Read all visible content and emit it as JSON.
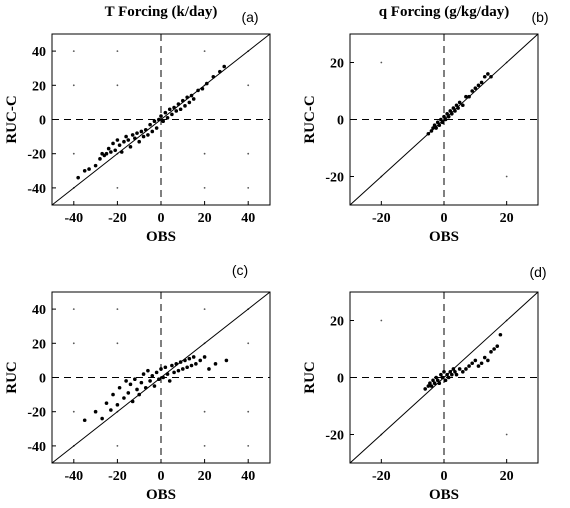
{
  "chart_data": [
    {
      "type": "scatter",
      "panel_label": "(a)",
      "title": "T Forcing (k/day)",
      "xlabel": "OBS",
      "ylabel": "RUC-C",
      "xlim": [
        -50,
        50
      ],
      "ylim": [
        -50,
        50
      ],
      "xticks": [
        -40,
        -20,
        0,
        20,
        40
      ],
      "yticks": [
        -40,
        -20,
        0,
        20,
        40
      ],
      "grid": "dotted",
      "reference_lines": [
        "y = x",
        "x = 0 (dashed)",
        "y = 0 (dashed)"
      ],
      "points": [
        [
          -38,
          -34
        ],
        [
          -35,
          -30
        ],
        [
          -33,
          -29
        ],
        [
          -30,
          -27
        ],
        [
          -28,
          -23
        ],
        [
          -27,
          -20
        ],
        [
          -26,
          -21
        ],
        [
          -25,
          -20
        ],
        [
          -24,
          -17
        ],
        [
          -23,
          -19
        ],
        [
          -22,
          -14
        ],
        [
          -21,
          -18
        ],
        [
          -20,
          -12
        ],
        [
          -19,
          -15
        ],
        [
          -18,
          -19
        ],
        [
          -17,
          -13
        ],
        [
          -16,
          -10
        ],
        [
          -15,
          -12
        ],
        [
          -14,
          -16
        ],
        [
          -13,
          -9
        ],
        [
          -12,
          -11
        ],
        [
          -11,
          -8
        ],
        [
          -10,
          -13
        ],
        [
          -9,
          -7
        ],
        [
          -8,
          -10
        ],
        [
          -7,
          -6
        ],
        [
          -6,
          -9
        ],
        [
          -5,
          -3
        ],
        [
          -4,
          -7
        ],
        [
          -3,
          -1
        ],
        [
          -2,
          -5
        ],
        [
          -1,
          0
        ],
        [
          0,
          2
        ],
        [
          1,
          -1
        ],
        [
          2,
          4
        ],
        [
          3,
          1
        ],
        [
          4,
          6
        ],
        [
          5,
          3
        ],
        [
          6,
          7
        ],
        [
          7,
          5
        ],
        [
          8,
          9
        ],
        [
          9,
          6
        ],
        [
          10,
          11
        ],
        [
          11,
          8
        ],
        [
          12,
          13
        ],
        [
          13,
          10
        ],
        [
          14,
          14
        ],
        [
          15,
          12
        ],
        [
          17,
          17
        ],
        [
          19,
          18
        ],
        [
          21,
          21
        ],
        [
          24,
          25
        ],
        [
          27,
          28
        ],
        [
          29,
          31
        ]
      ]
    },
    {
      "type": "scatter",
      "panel_label": "(b)",
      "title": "q Forcing (g/kg/day)",
      "xlabel": "OBS",
      "ylabel": "RUC-C",
      "xlim": [
        -30,
        30
      ],
      "ylim": [
        -30,
        30
      ],
      "xticks": [
        -20,
        0,
        20
      ],
      "yticks": [
        -20,
        0,
        20
      ],
      "grid": "dotted",
      "reference_lines": [
        "y = x",
        "x = 0 (dashed)",
        "y = 0 (dashed)"
      ],
      "points": [
        [
          -5,
          -5
        ],
        [
          -4,
          -4
        ],
        [
          -3.5,
          -3
        ],
        [
          -3,
          -2
        ],
        [
          -2.5,
          -3
        ],
        [
          -2,
          -1
        ],
        [
          -1.5,
          -2
        ],
        [
          -1,
          0
        ],
        [
          -0.5,
          -1
        ],
        [
          0,
          1
        ],
        [
          0.5,
          0
        ],
        [
          1,
          2
        ],
        [
          1.5,
          1
        ],
        [
          2,
          3
        ],
        [
          2.5,
          2
        ],
        [
          3,
          4
        ],
        [
          3.5,
          3
        ],
        [
          4,
          5
        ],
        [
          4.5,
          4
        ],
        [
          5,
          6
        ],
        [
          6,
          5
        ],
        [
          7,
          8
        ],
        [
          8,
          8
        ],
        [
          9,
          10
        ],
        [
          10,
          11
        ],
        [
          11,
          12
        ],
        [
          12,
          13
        ],
        [
          13,
          15
        ],
        [
          14,
          16
        ],
        [
          15,
          15
        ]
      ]
    },
    {
      "type": "scatter",
      "panel_label": "(c)",
      "title": "",
      "xlabel": "OBS",
      "ylabel": "RUC",
      "xlim": [
        -50,
        50
      ],
      "ylim": [
        -50,
        50
      ],
      "xticks": [
        -40,
        -20,
        0,
        20,
        40
      ],
      "yticks": [
        -40,
        -20,
        0,
        20,
        40
      ],
      "grid": "dotted",
      "reference_lines": [
        "y = x",
        "x = 0 (dashed)",
        "y = 0 (dashed)"
      ],
      "points": [
        [
          -35,
          -25
        ],
        [
          -30,
          -20
        ],
        [
          -27,
          -24
        ],
        [
          -25,
          -15
        ],
        [
          -23,
          -19
        ],
        [
          -22,
          -10
        ],
        [
          -20,
          -16
        ],
        [
          -19,
          -6
        ],
        [
          -17,
          -12
        ],
        [
          -16,
          -2
        ],
        [
          -15,
          -9
        ],
        [
          -14,
          -4
        ],
        [
          -13,
          -14
        ],
        [
          -12,
          -1
        ],
        [
          -11,
          -7
        ],
        [
          -10,
          -10
        ],
        [
          -9,
          -3
        ],
        [
          -8,
          2
        ],
        [
          -7,
          -6
        ],
        [
          -6,
          4
        ],
        [
          -5,
          -2
        ],
        [
          -4,
          1
        ],
        [
          -3,
          -5
        ],
        [
          -2,
          3
        ],
        [
          -1,
          -1
        ],
        [
          0,
          5
        ],
        [
          1,
          0
        ],
        [
          2,
          6
        ],
        [
          3,
          2
        ],
        [
          4,
          -2
        ],
        [
          5,
          7
        ],
        [
          6,
          3
        ],
        [
          7,
          8
        ],
        [
          8,
          4
        ],
        [
          9,
          9
        ],
        [
          10,
          5
        ],
        [
          11,
          10
        ],
        [
          12,
          6
        ],
        [
          13,
          11
        ],
        [
          14,
          7
        ],
        [
          15,
          12
        ],
        [
          16,
          8
        ],
        [
          18,
          10
        ],
        [
          20,
          12
        ],
        [
          22,
          5
        ],
        [
          25,
          8
        ],
        [
          30,
          10
        ]
      ]
    },
    {
      "type": "scatter",
      "panel_label": "(d)",
      "title": "",
      "xlabel": "OBS",
      "ylabel": "RUC",
      "xlim": [
        -30,
        30
      ],
      "ylim": [
        -30,
        30
      ],
      "xticks": [
        -20,
        0,
        20
      ],
      "yticks": [
        -20,
        0,
        20
      ],
      "grid": "dotted",
      "reference_lines": [
        "y = x",
        "x = 0 (dashed)",
        "y = 0 (dashed)"
      ],
      "points": [
        [
          -6,
          -4
        ],
        [
          -5,
          -3
        ],
        [
          -4.5,
          -2
        ],
        [
          -4,
          -3
        ],
        [
          -3.5,
          -1
        ],
        [
          -3,
          -2
        ],
        [
          -2.5,
          0
        ],
        [
          -2,
          -1
        ],
        [
          -1.5,
          -2
        ],
        [
          -1,
          1
        ],
        [
          -0.5,
          0
        ],
        [
          0,
          2
        ],
        [
          0.5,
          -1
        ],
        [
          1,
          1
        ],
        [
          1.5,
          0
        ],
        [
          2,
          2
        ],
        [
          2.5,
          1
        ],
        [
          3,
          3
        ],
        [
          3.5,
          2
        ],
        [
          4,
          1
        ],
        [
          5,
          3
        ],
        [
          6,
          2
        ],
        [
          7,
          3
        ],
        [
          8,
          4
        ],
        [
          9,
          5
        ],
        [
          10,
          6
        ],
        [
          11,
          4
        ],
        [
          12,
          5
        ],
        [
          13,
          7
        ],
        [
          14,
          6
        ],
        [
          15,
          9
        ],
        [
          16,
          10
        ],
        [
          17,
          11
        ],
        [
          18,
          15
        ]
      ]
    }
  ]
}
